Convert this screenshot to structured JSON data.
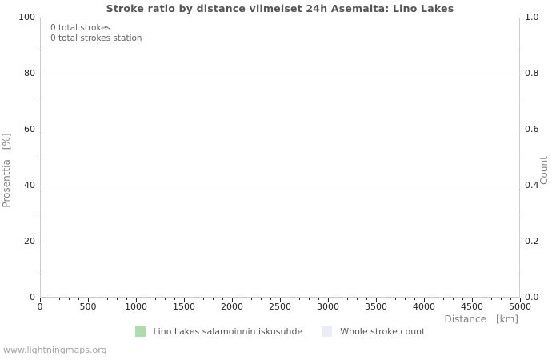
{
  "page": {
    "footer": "www.lightningmaps.org"
  },
  "chart_data": {
    "type": "line",
    "title": "Stroke ratio by distance viimeiset 24h Asemalta: Lino Lakes",
    "annotations": [
      "0 total strokes",
      "0 total strokes station"
    ],
    "x_axis": {
      "label": "Distance",
      "unit": "[km]",
      "min": 0,
      "max": 5000,
      "major_ticks": [
        0,
        500,
        1000,
        1500,
        2000,
        2500,
        3000,
        3500,
        4000,
        4500,
        5000
      ],
      "minor_step": 100
    },
    "y_axis_left": {
      "label": "Prosenttia",
      "unit": "[%]",
      "min": 0,
      "max": 100,
      "major_ticks": [
        0,
        20,
        40,
        60,
        80,
        100
      ],
      "minor_step": 10
    },
    "y_axis_right": {
      "label": "Count",
      "min": 0,
      "max": 1,
      "major_tick_labels": [
        "0.0",
        "0.2",
        "0.4",
        "0.6",
        "0.8",
        "1.0"
      ],
      "minor_step": 0.1
    },
    "grid": "horizontal",
    "legend_position": "bottom",
    "series": [
      {
        "name": "Lino Lakes salamoinnin iskusuhde",
        "color": "#aedcae",
        "values": []
      },
      {
        "name": "Whole stroke count",
        "color": "#ebebfa",
        "values": []
      }
    ],
    "colors": {
      "frame": "#cccccc",
      "grid": "#d6d6d6",
      "tick": "#222222"
    }
  }
}
